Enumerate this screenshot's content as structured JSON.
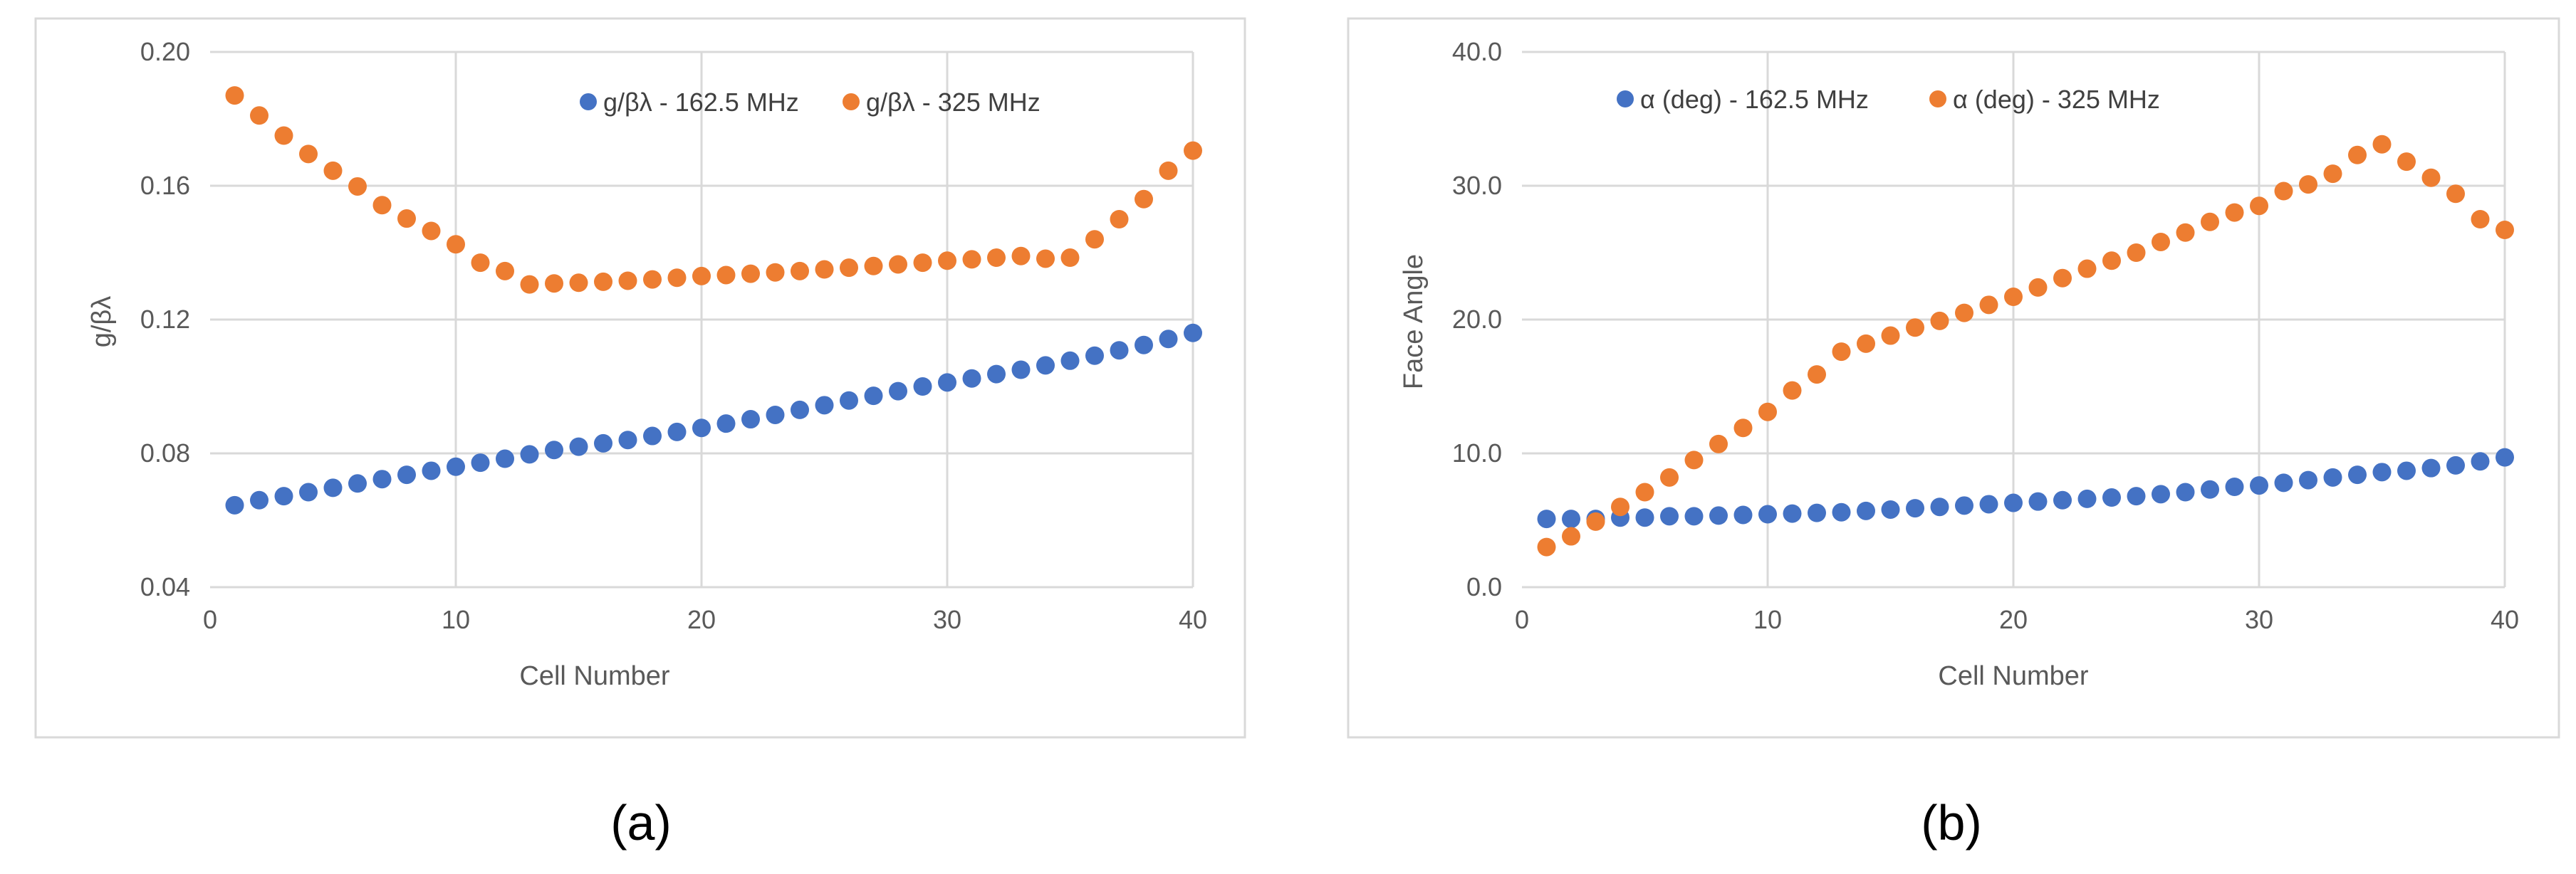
{
  "chart_data": [
    {
      "type": "scatter",
      "panel_label": "(a)",
      "xlabel": "Cell Number",
      "ylabel": "g/βλ",
      "xlim": [
        0,
        40
      ],
      "ylim": [
        0.04,
        0.2
      ],
      "xticks": [
        0,
        10,
        20,
        30,
        40
      ],
      "xtick_labels": [
        "0",
        "10",
        "20",
        "30",
        "40"
      ],
      "yticks": [
        0.04,
        0.08,
        0.12,
        0.16,
        0.2
      ],
      "ytick_labels": [
        "0.04",
        "0.08",
        "0.12",
        "0.16",
        "0.20"
      ],
      "grid": true,
      "legend_position": "top-center",
      "x": [
        1,
        2,
        3,
        4,
        5,
        6,
        7,
        8,
        9,
        10,
        11,
        12,
        13,
        14,
        15,
        16,
        17,
        18,
        19,
        20,
        21,
        22,
        23,
        24,
        25,
        26,
        27,
        28,
        29,
        30,
        31,
        32,
        33,
        34,
        35,
        36,
        37,
        38,
        39,
        40
      ],
      "series": [
        {
          "name": "g/βλ - 162.5 MHz",
          "color": "#4472C4",
          "values": [
            0.0645,
            0.066,
            0.0672,
            0.0684,
            0.0697,
            0.071,
            0.0723,
            0.0736,
            0.0748,
            0.076,
            0.0772,
            0.0784,
            0.0797,
            0.081,
            0.082,
            0.083,
            0.084,
            0.0852,
            0.0864,
            0.0876,
            0.0889,
            0.0902,
            0.0915,
            0.093,
            0.0944,
            0.0958,
            0.0972,
            0.0986,
            0.1,
            0.1012,
            0.1024,
            0.1037,
            0.105,
            0.1063,
            0.1077,
            0.1092,
            0.1108,
            0.1124,
            0.1142,
            0.116
          ]
        },
        {
          "name": "g/βλ - 325 MHz",
          "color": "#ED7D31",
          "values": [
            0.187,
            0.181,
            0.175,
            0.1695,
            0.1645,
            0.1598,
            0.1542,
            0.1502,
            0.1465,
            0.1425,
            0.137,
            0.1345,
            0.1305,
            0.1308,
            0.131,
            0.1313,
            0.1316,
            0.132,
            0.1325,
            0.133,
            0.1333,
            0.1337,
            0.1341,
            0.1345,
            0.135,
            0.1355,
            0.136,
            0.1365,
            0.137,
            0.1376,
            0.138,
            0.1385,
            0.139,
            0.1382,
            0.1385,
            0.144,
            0.15,
            0.156,
            0.1645,
            0.1705
          ]
        }
      ]
    },
    {
      "type": "scatter",
      "panel_label": "(b)",
      "xlabel": "Cell Number",
      "ylabel": "Face Angle",
      "xlim": [
        0,
        40
      ],
      "ylim": [
        0,
        40
      ],
      "xticks": [
        0,
        10,
        20,
        30,
        40
      ],
      "xtick_labels": [
        "0",
        "10",
        "20",
        "30",
        "40"
      ],
      "yticks": [
        0,
        10,
        20,
        30,
        40
      ],
      "ytick_labels": [
        "0.0",
        "10.0",
        "20.0",
        "30.0",
        "40.0"
      ],
      "grid": true,
      "legend_position": "top-left",
      "x": [
        1,
        2,
        3,
        4,
        5,
        6,
        7,
        8,
        9,
        10,
        11,
        12,
        13,
        14,
        15,
        16,
        17,
        18,
        19,
        20,
        21,
        22,
        23,
        24,
        25,
        26,
        27,
        28,
        29,
        30,
        31,
        32,
        33,
        34,
        35,
        36,
        37,
        38,
        39,
        40
      ],
      "series": [
        {
          "name": "α (deg) - 162.5 MHz",
          "color": "#4472C4",
          "values": [
            5.1,
            5.1,
            5.1,
            5.2,
            5.2,
            5.3,
            5.3,
            5.35,
            5.4,
            5.45,
            5.5,
            5.55,
            5.6,
            5.7,
            5.8,
            5.9,
            6.0,
            6.1,
            6.2,
            6.3,
            6.4,
            6.5,
            6.6,
            6.7,
            6.8,
            6.95,
            7.1,
            7.3,
            7.5,
            7.6,
            7.8,
            8.0,
            8.2,
            8.4,
            8.6,
            8.7,
            8.9,
            9.1,
            9.4,
            9.7
          ]
        },
        {
          "name": "α (deg) - 325 MHz",
          "color": "#ED7D31",
          "values": [
            3.0,
            3.8,
            4.9,
            6.0,
            7.1,
            8.2,
            9.5,
            10.7,
            11.9,
            13.1,
            14.7,
            15.9,
            17.6,
            18.2,
            18.8,
            19.4,
            19.9,
            20.5,
            21.1,
            21.7,
            22.4,
            23.1,
            23.8,
            24.4,
            25.0,
            25.8,
            26.5,
            27.3,
            28.0,
            28.5,
            29.6,
            30.1,
            30.9,
            32.3,
            33.1,
            31.8,
            30.6,
            29.4,
            27.5,
            26.7
          ]
        }
      ]
    }
  ]
}
